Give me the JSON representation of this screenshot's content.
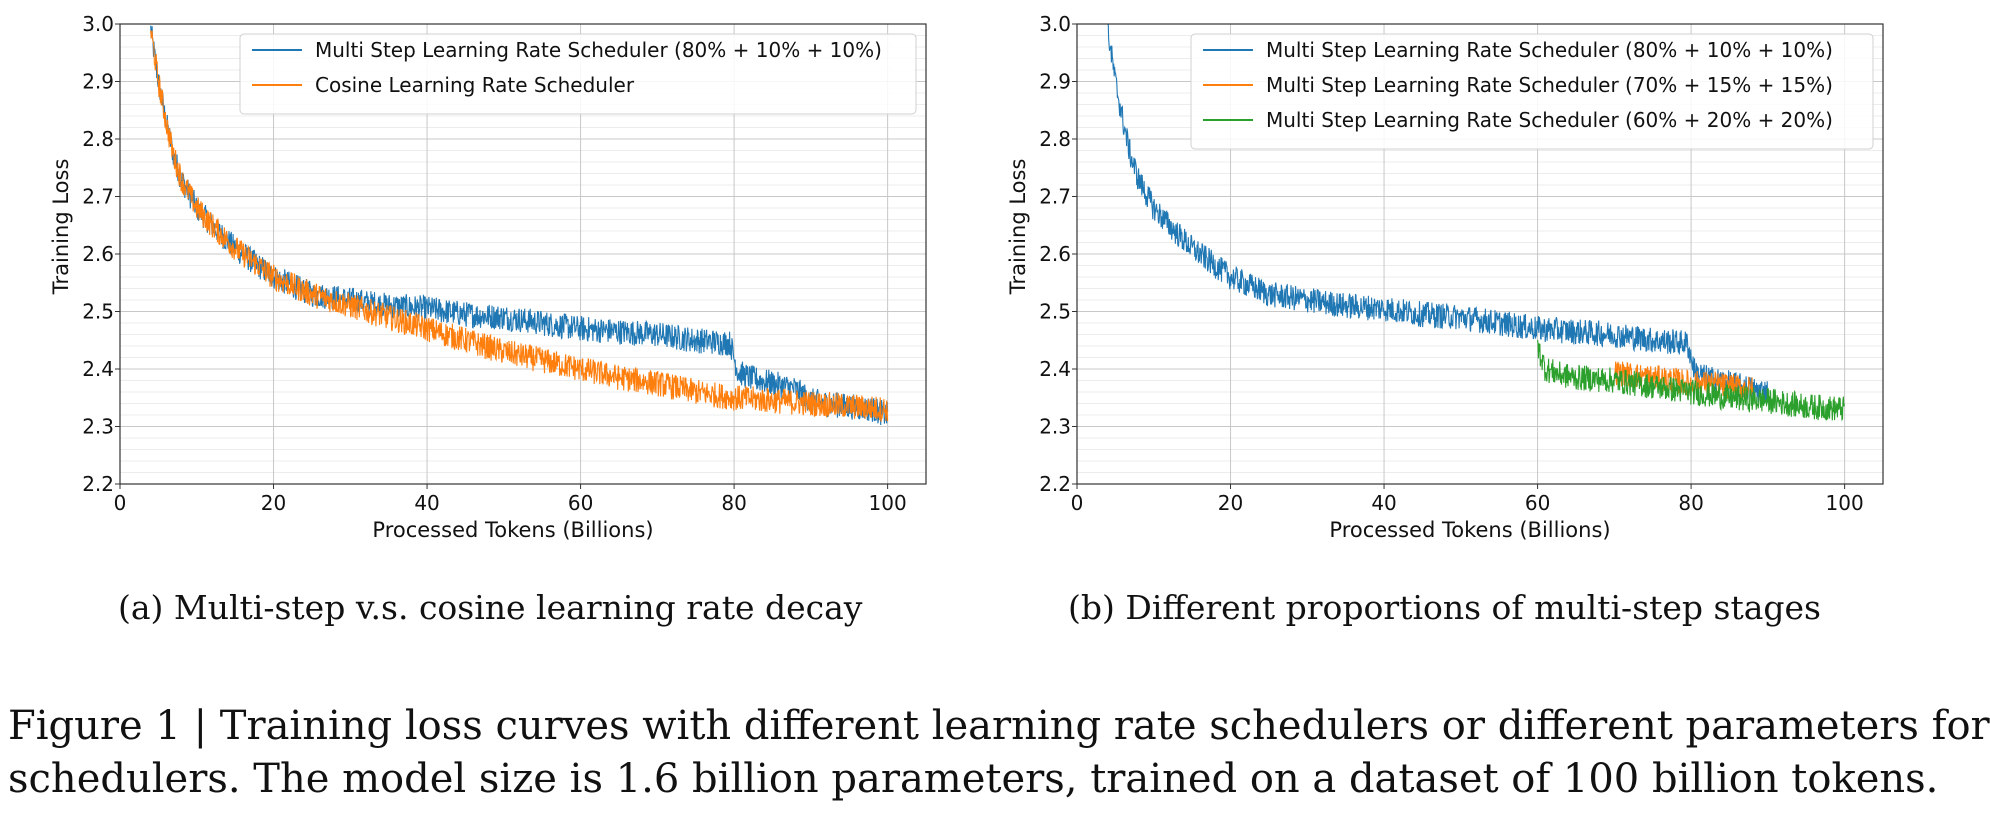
{
  "figure": {
    "caption_line1": "Figure 1 | Training loss curves with different learning rate schedulers or different parameters for",
    "caption_line2": "schedulers. The model size is 1.6 billion parameters, trained on a dataset of 100 billion tokens."
  },
  "chart_data": [
    {
      "type": "line",
      "subcaption": "(a)  Multi-step v.s. cosine learning rate decay",
      "xlabel": "Processed Tokens (Billions)",
      "ylabel": "Training Loss",
      "xlim": [
        0,
        105
      ],
      "ylim": [
        2.2,
        3.0
      ],
      "xticks": [
        0,
        20,
        40,
        60,
        80,
        100
      ],
      "yticks": [
        2.2,
        2.3,
        2.4,
        2.5,
        2.6,
        2.7,
        2.8,
        2.9,
        3.0
      ],
      "grid": true,
      "legend_position": "top-right",
      "series": [
        {
          "name": "Multi Step Learning Rate Scheduler (80% + 10% + 10%)",
          "color": "#1f77b4",
          "x": [
            4,
            5,
            6,
            7,
            8,
            10,
            12,
            15,
            20,
            25,
            30,
            35,
            40,
            45,
            50,
            55,
            60,
            65,
            70,
            75,
            79.5,
            80.5,
            82,
            85,
            88,
            90,
            92,
            95,
            98,
            100
          ],
          "y": [
            2.99,
            2.9,
            2.83,
            2.77,
            2.73,
            2.68,
            2.65,
            2.61,
            2.56,
            2.53,
            2.52,
            2.51,
            2.505,
            2.495,
            2.49,
            2.48,
            2.47,
            2.465,
            2.46,
            2.45,
            2.445,
            2.395,
            2.385,
            2.375,
            2.365,
            2.345,
            2.34,
            2.335,
            2.33,
            2.32
          ]
        },
        {
          "name": "Cosine Learning Rate Scheduler",
          "color": "#ff7f0e",
          "x": [
            4,
            5,
            6,
            7,
            8,
            10,
            12,
            15,
            20,
            25,
            30,
            35,
            40,
            45,
            50,
            55,
            60,
            65,
            70,
            75,
            80,
            85,
            90,
            95,
            100
          ],
          "y": [
            2.99,
            2.9,
            2.83,
            2.77,
            2.73,
            2.68,
            2.65,
            2.61,
            2.56,
            2.53,
            2.51,
            2.49,
            2.47,
            2.45,
            2.43,
            2.415,
            2.4,
            2.385,
            2.375,
            2.36,
            2.35,
            2.345,
            2.34,
            2.335,
            2.33
          ]
        }
      ]
    },
    {
      "type": "line",
      "subcaption": "(b)  Different proportions of multi-step stages",
      "xlabel": "Processed Tokens (Billions)",
      "ylabel": "Training Loss",
      "xlim": [
        0,
        105
      ],
      "ylim": [
        2.2,
        3.0
      ],
      "xticks": [
        0,
        20,
        40,
        60,
        80,
        100
      ],
      "yticks": [
        2.2,
        2.3,
        2.4,
        2.5,
        2.6,
        2.7,
        2.8,
        2.9,
        3.0
      ],
      "grid": true,
      "legend_position": "top-right",
      "series": [
        {
          "name": "Multi Step Learning Rate Scheduler (80% + 10% + 10%)",
          "color": "#1f77b4",
          "x": [
            4,
            5,
            6,
            7,
            8,
            10,
            12,
            15,
            20,
            25,
            30,
            35,
            40,
            45,
            50,
            55,
            60,
            65,
            70,
            75,
            79.5,
            80.5,
            82,
            85,
            88,
            90
          ],
          "y": [
            2.99,
            2.9,
            2.83,
            2.77,
            2.73,
            2.68,
            2.65,
            2.61,
            2.56,
            2.53,
            2.52,
            2.51,
            2.505,
            2.495,
            2.49,
            2.48,
            2.47,
            2.465,
            2.46,
            2.45,
            2.445,
            2.395,
            2.385,
            2.375,
            2.365,
            2.36
          ]
        },
        {
          "name": "Multi Step Learning Rate Scheduler (70% + 15% + 15%)",
          "color": "#ff7f0e",
          "x": [
            70,
            72,
            75,
            78,
            80,
            82,
            85,
            88
          ],
          "y": [
            2.395,
            2.39,
            2.385,
            2.38,
            2.375,
            2.375,
            2.37,
            2.365
          ]
        },
        {
          "name": "Multi Step Learning Rate Scheduler (60% + 20% + 20%)",
          "color": "#2ca02c",
          "x": [
            60,
            61,
            63,
            65,
            70,
            75,
            80,
            85,
            90,
            95,
            100
          ],
          "y": [
            2.44,
            2.4,
            2.39,
            2.385,
            2.38,
            2.37,
            2.36,
            2.35,
            2.345,
            2.335,
            2.33
          ]
        }
      ]
    }
  ]
}
